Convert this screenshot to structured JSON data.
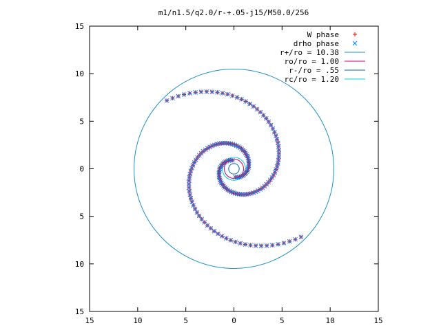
{
  "chart_data": {
    "type": "scatter",
    "title": "m1/n1.5/q2.0/r-+.05-j15/M50.0/256",
    "xlabel": "",
    "ylabel": "",
    "xlim": [
      -15,
      15
    ],
    "ylim": [
      -15,
      15
    ],
    "x_tick_labels": [
      "15",
      "10",
      "5",
      "0",
      "5",
      "10",
      "15"
    ],
    "y_tick_labels": [
      "15",
      "10",
      "5",
      "0",
      "5",
      "10",
      "15"
    ],
    "x_tick_values": [
      -15,
      -10,
      -5,
      0,
      5,
      10,
      15
    ],
    "y_tick_values": [
      -15,
      -10,
      -5,
      0,
      5,
      10,
      15
    ],
    "grid": false,
    "legend_position": "top-right",
    "legend": [
      {
        "label": "W phase",
        "kind": "point",
        "symbol": "+",
        "color": "#ff0000"
      },
      {
        "label": "drho phase",
        "kind": "point",
        "symbol": "x",
        "color": "#0080ff"
      },
      {
        "label": "r+/ro = 10.38",
        "kind": "line",
        "color": "#1e90c8"
      },
      {
        "label": "ro/ro = 1.00",
        "kind": "line",
        "color": "#c0007e"
      },
      {
        "label": "r-/ro = .55",
        "kind": "line",
        "color": "#0060ad"
      },
      {
        "label": "rc/ro = 1.20",
        "kind": "line",
        "color": "#00d0e0"
      }
    ],
    "circles": [
      {
        "name": "r+/ro = 10.38",
        "radius": 10.38,
        "color": "#1e90c8"
      },
      {
        "name": "ro/ro = 1.00",
        "radius": 1.0,
        "color": "#c0007e"
      },
      {
        "name": "r-/ro = .55",
        "radius": 0.55,
        "color": "#0060ad"
      },
      {
        "name": "rc/ro = 1.20",
        "radius": 1.2,
        "color": "#00d0e0"
      }
    ],
    "spiral_arms": [
      {
        "r0": 0.9,
        "th0_deg": 100,
        "rmax": 10.0,
        "b": 0.35,
        "n": 85
      },
      {
        "r0": 0.9,
        "th0_deg": 280,
        "rmax": 10.0,
        "b": 0.35,
        "n": 85
      }
    ],
    "series": [
      {
        "name": "W phase",
        "symbol": "+",
        "color": "#ff0000"
      },
      {
        "name": "drho phase",
        "symbol": "x",
        "color": "#0080ff"
      }
    ]
  }
}
